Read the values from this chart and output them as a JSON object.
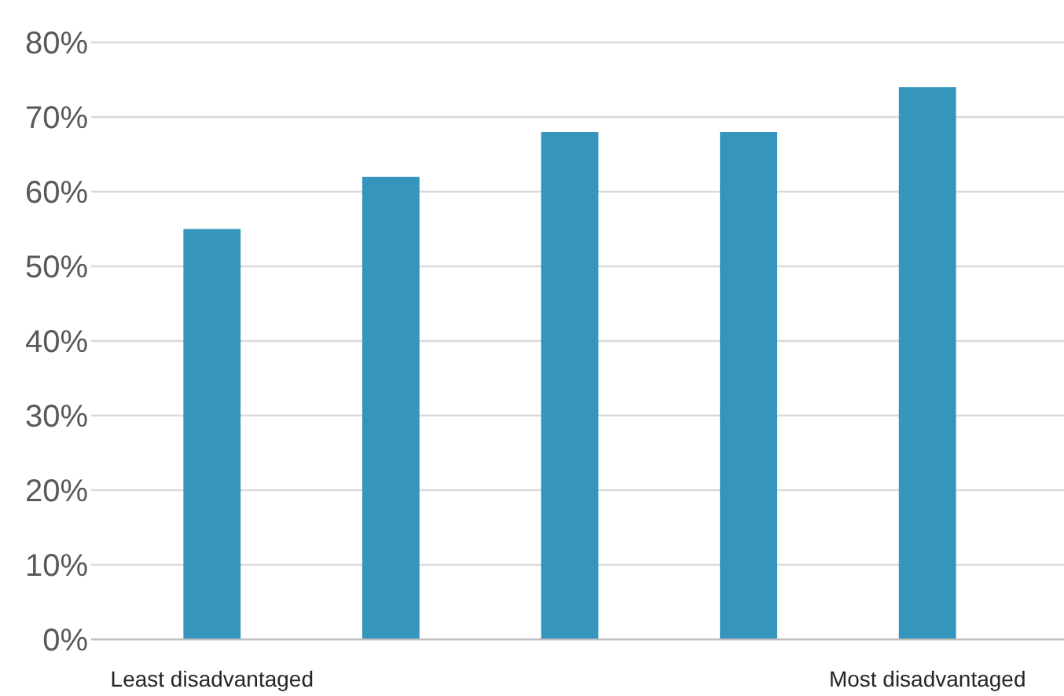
{
  "chart_data": {
    "type": "bar",
    "categories": [
      "Least disadvantaged",
      null,
      null,
      null,
      "Most disadvantaged"
    ],
    "values": [
      55,
      62,
      68,
      68,
      74
    ],
    "color": "#3595bc",
    "ylim": [
      0,
      80
    ],
    "yticks": [
      {
        "value": 0,
        "label": "0%"
      },
      {
        "value": 10,
        "label": "10%"
      },
      {
        "value": 20,
        "label": "20%"
      },
      {
        "value": 30,
        "label": "30%"
      },
      {
        "value": 40,
        "label": "40%"
      },
      {
        "value": 50,
        "label": "50%"
      },
      {
        "value": 60,
        "label": "60%"
      },
      {
        "value": 70,
        "label": "70%"
      },
      {
        "value": 80,
        "label": "80%"
      }
    ],
    "grid": "y"
  }
}
